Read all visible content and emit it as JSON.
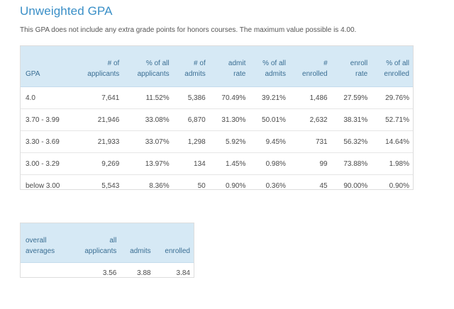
{
  "title": "Unweighted GPA",
  "subtitle": "This GPA does not include any extra grade points for honors courses. The maximum value possible is 4.00.",
  "main_table": {
    "headers": [
      [
        "GPA"
      ],
      [
        "# of",
        "applicants"
      ],
      [
        "% of all",
        "applicants"
      ],
      [
        "# of",
        "admits"
      ],
      [
        "admit",
        "rate"
      ],
      [
        "% of all",
        "admits"
      ],
      [
        "#",
        "enrolled"
      ],
      [
        "enroll",
        "rate"
      ],
      [
        "% of all",
        "enrolled"
      ]
    ],
    "rows": [
      [
        "4.0",
        "7,641",
        "11.52%",
        "5,386",
        "70.49%",
        "39.21%",
        "1,486",
        "27.59%",
        "29.76%"
      ],
      [
        "3.70 - 3.99",
        "21,946",
        "33.08%",
        "6,870",
        "31.30%",
        "50.01%",
        "2,632",
        "38.31%",
        "52.71%"
      ],
      [
        "3.30 - 3.69",
        "21,933",
        "33.07%",
        "1,298",
        "5.92%",
        "9.45%",
        "731",
        "56.32%",
        "14.64%"
      ],
      [
        "3.00 - 3.29",
        "9,269",
        "13.97%",
        "134",
        "1.45%",
        "0.98%",
        "99",
        "73.88%",
        "1.98%"
      ],
      [
        "below 3.00",
        "5,543",
        "8.36%",
        "50",
        "0.90%",
        "0.36%",
        "45",
        "90.00%",
        "0.90%"
      ]
    ]
  },
  "avg_table": {
    "headers": [
      [
        "overall",
        "averages"
      ],
      [
        "all",
        "applicants"
      ],
      [
        "admits"
      ],
      [
        "enrolled"
      ]
    ],
    "rows": [
      [
        "",
        "3.56",
        "3.88",
        "3.84"
      ]
    ]
  }
}
